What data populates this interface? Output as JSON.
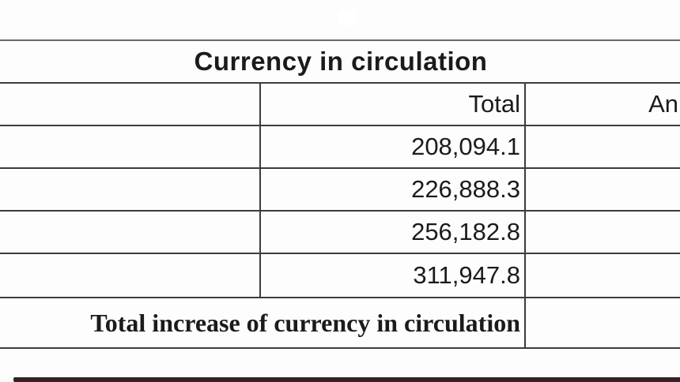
{
  "table": {
    "title": "Currency in circulation",
    "header": {
      "col1": "",
      "col2": "Total",
      "col3_partial": "An"
    },
    "values": [
      "208,094.1",
      "226,888.3",
      "256,182.8",
      "311,947.8"
    ],
    "footer_label": "Total increase of currency in circulation"
  },
  "colors": {
    "background": "#fdfdfd",
    "grid_line": "#3c3c3c",
    "text": "#1b1b1b",
    "progress_bar": "#3a2126"
  }
}
